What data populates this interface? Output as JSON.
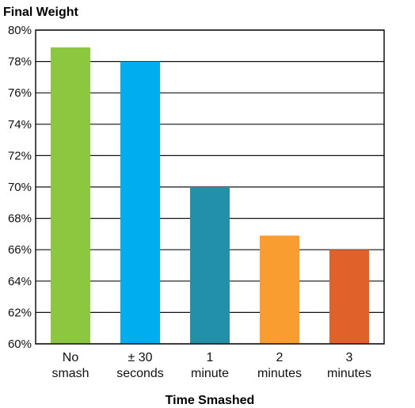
{
  "chart_data": {
    "type": "bar",
    "title": "Final Weight",
    "xlabel": "Time Smashed",
    "ylabel": "",
    "ylim": [
      60,
      80
    ],
    "y_ticks": [
      "80%",
      "78%",
      "76%",
      "74%",
      "72%",
      "70%",
      "68%",
      "66%",
      "64%",
      "62%",
      "60%"
    ],
    "categories": [
      [
        "No",
        "smash"
      ],
      [
        "± 30",
        "seconds"
      ],
      [
        "1",
        "minute"
      ],
      [
        "2",
        "minutes"
      ],
      [
        "3",
        "minutes"
      ]
    ],
    "values": [
      78.9,
      78.0,
      70.0,
      66.9,
      66.0
    ],
    "colors": [
      "#8dc63f",
      "#00aeef",
      "#2290a8",
      "#f99d31",
      "#e0622a"
    ],
    "grid": true
  }
}
